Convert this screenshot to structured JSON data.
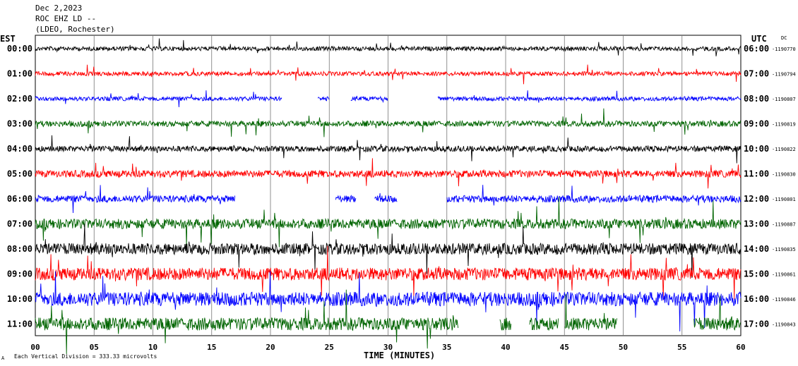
{
  "header": {
    "date": "Dec 2,2023",
    "station": "ROC EHZ LD --",
    "network": "(LDEO, Rochester)"
  },
  "chart_data": {
    "type": "line",
    "left_timezone_label": "EST",
    "right_timezone_label": "UTC",
    "right_header_note": "DC",
    "xlabel": "TIME (MINUTES)",
    "x_ticks": [
      "00",
      "05",
      "10",
      "15",
      "20",
      "25",
      "30",
      "35",
      "40",
      "45",
      "50",
      "55",
      "60"
    ],
    "xlim": [
      0,
      60
    ],
    "grid": true,
    "scale_note": "Each Vertical Division =  333.33 microvolts",
    "trace_colors": [
      "#000000",
      "#ff0000",
      "#0000ff",
      "#006400"
    ],
    "rows": [
      {
        "est": "00:00",
        "utc": "06:00",
        "dc": "-1190770",
        "color": "#000000",
        "amplitude": 3,
        "gaps": []
      },
      {
        "est": "01:00",
        "utc": "07:00",
        "dc": "-1190794",
        "color": "#ff0000",
        "amplitude": 3,
        "gaps": []
      },
      {
        "est": "02:00",
        "utc": "08:00",
        "dc": "-1190807",
        "color": "#0000ff",
        "amplitude": 3,
        "gaps": [
          [
            21,
            24
          ],
          [
            25,
            26.8
          ],
          [
            30,
            34.2
          ]
        ]
      },
      {
        "est": "03:00",
        "utc": "09:00",
        "dc": "-1190819",
        "color": "#006400",
        "amplitude": 4,
        "gaps": []
      },
      {
        "est": "04:00",
        "utc": "10:00",
        "dc": "-1190822",
        "color": "#000000",
        "amplitude": 4,
        "gaps": []
      },
      {
        "est": "05:00",
        "utc": "11:00",
        "dc": "-1190830",
        "color": "#ff0000",
        "amplitude": 5,
        "gaps": []
      },
      {
        "est": "06:00",
        "utc": "12:00",
        "dc": "-1190801",
        "color": "#0000ff",
        "amplitude": 5,
        "gaps": [
          [
            17,
            25.5
          ],
          [
            27.3,
            28.8
          ],
          [
            30.8,
            35
          ]
        ]
      },
      {
        "est": "07:00",
        "utc": "13:00",
        "dc": "-1190887",
        "color": "#006400",
        "amplitude": 7,
        "gaps": []
      },
      {
        "est": "08:00",
        "utc": "14:00",
        "dc": "-1190835",
        "color": "#000000",
        "amplitude": 8,
        "gaps": []
      },
      {
        "est": "09:00",
        "utc": "15:00",
        "dc": "-1190861",
        "color": "#ff0000",
        "amplitude": 9,
        "gaps": []
      },
      {
        "est": "10:00",
        "utc": "16:00",
        "dc": "-1190846",
        "color": "#0000ff",
        "amplitude": 10,
        "gaps": []
      },
      {
        "est": "11:00",
        "utc": "17:00",
        "dc": "-1190843",
        "color": "#006400",
        "amplitude": 9,
        "gaps": [
          [
            36,
            39.5
          ],
          [
            40.5,
            42
          ],
          [
            44.5,
            45
          ],
          [
            49.5,
            56
          ]
        ]
      }
    ]
  }
}
